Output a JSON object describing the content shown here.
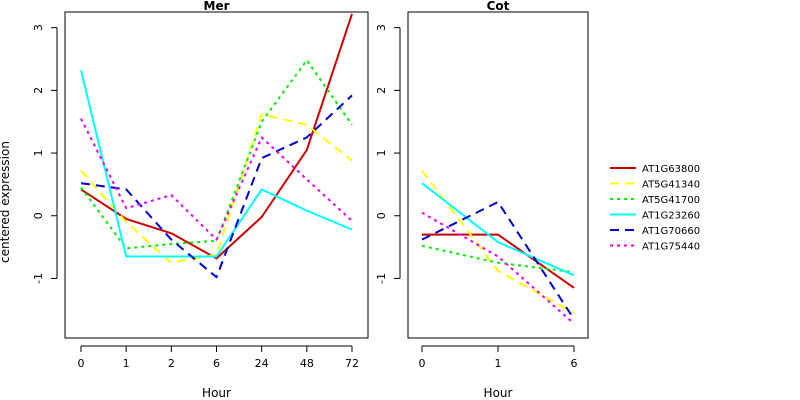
{
  "chart_data": {
    "type": "line",
    "ylabel": "centered expression",
    "xlabel": "Hour",
    "legend_position": "right",
    "series_styles": [
      {
        "name": "AT1G63800",
        "color": "#cc0000",
        "dash": "solid"
      },
      {
        "name": "AT5G41340",
        "color": "#ffff00",
        "dash": "dashed"
      },
      {
        "name": "AT5G41700",
        "color": "#00ee00",
        "dash": "dotted"
      },
      {
        "name": "AT1G23260",
        "color": "#00ffff",
        "dash": "solid"
      },
      {
        "name": "AT1G70660",
        "color": "#0000cc",
        "dash": "dashed"
      },
      {
        "name": "AT1G75440",
        "color": "#ee00ee",
        "dash": "dotted"
      }
    ],
    "panels": [
      {
        "title": "Mer",
        "categories": [
          "0",
          "1",
          "2",
          "6",
          "24",
          "48",
          "72"
        ],
        "yticks": [
          "-1",
          "0",
          "1",
          "2",
          "3"
        ],
        "ylim": [
          -1.95,
          3.25
        ],
        "series": [
          {
            "name": "AT1G63800",
            "values": [
              0.42,
              -0.05,
              -0.28,
              -0.68,
              -0.02,
              1.05,
              3.22
            ]
          },
          {
            "name": "AT5G41340",
            "values": [
              0.72,
              -0.1,
              -0.75,
              -0.62,
              1.62,
              1.45,
              0.88
            ]
          },
          {
            "name": "AT5G41700",
            "values": [
              0.45,
              -0.52,
              -0.45,
              -0.4,
              1.5,
              2.48,
              1.45
            ]
          },
          {
            "name": "AT1G23260",
            "values": [
              2.32,
              -0.65,
              -0.65,
              -0.65,
              0.42,
              0.08,
              -0.22
            ]
          },
          {
            "name": "AT1G70660",
            "values": [
              0.52,
              0.42,
              -0.38,
              -0.98,
              0.92,
              1.25,
              1.92
            ]
          },
          {
            "name": "AT1G75440",
            "values": [
              1.55,
              0.12,
              0.33,
              -0.38,
              1.25,
              0.58,
              -0.08
            ]
          }
        ]
      },
      {
        "title": "Cot",
        "categories": [
          "0",
          "1",
          "6"
        ],
        "yticks": [
          "-1",
          "0",
          "1",
          "2",
          "3"
        ],
        "ylim": [
          -1.95,
          3.25
        ],
        "series": [
          {
            "name": "AT1G63800",
            "values": [
              -0.3,
              -0.3,
              -1.15
            ]
          },
          {
            "name": "AT5G41340",
            "values": [
              0.72,
              -0.88,
              -1.55
            ]
          },
          {
            "name": "AT5G41700",
            "values": [
              -0.48,
              -0.75,
              -0.9
            ]
          },
          {
            "name": "AT1G23260",
            "values": [
              0.52,
              -0.42,
              -0.95
            ]
          },
          {
            "name": "AT1G70660",
            "values": [
              -0.38,
              0.22,
              -1.65
            ]
          },
          {
            "name": "AT1G75440",
            "values": [
              0.05,
              -0.65,
              -1.72
            ]
          }
        ]
      }
    ]
  }
}
